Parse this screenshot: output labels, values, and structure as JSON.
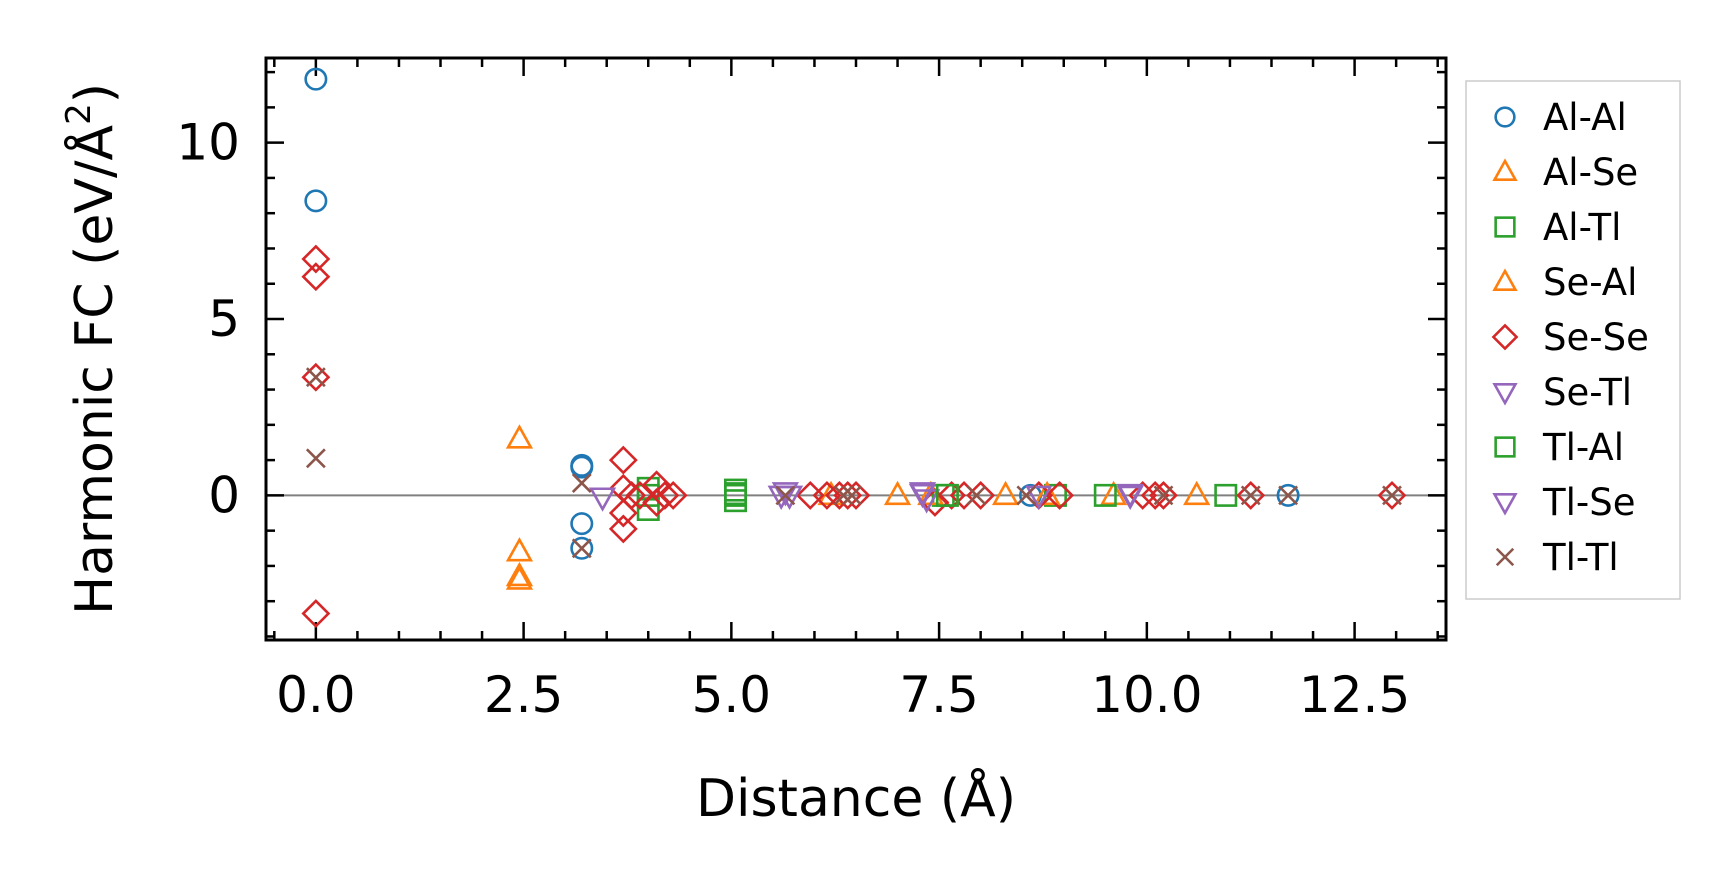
{
  "chart_data": {
    "type": "scatter",
    "title": "",
    "xlabel": "Distance (Å)",
    "ylabel_main": "Harmonic FC (eV/Å",
    "ylabel_sup": "2",
    "ylabel_close": ")",
    "xlim": [
      -0.6,
      13.6
    ],
    "ylim": [
      -4.1,
      12.4
    ],
    "xticks": [
      0.0,
      2.5,
      5.0,
      7.5,
      10.0,
      12.5
    ],
    "xtick_labels": [
      "0.0",
      "2.5",
      "5.0",
      "7.5",
      "10.0",
      "12.5"
    ],
    "yticks": [
      0,
      5,
      10
    ],
    "ytick_labels": [
      "0",
      "5",
      "10"
    ],
    "x_minor_step": 0.5,
    "y_minor_step": 1,
    "zero_line": true,
    "legend_position": "outside-right",
    "series": [
      {
        "name": "Al-Al",
        "marker": "circle",
        "color": "#1f77b4",
        "points": [
          [
            0,
            11.8
          ],
          [
            0,
            8.35
          ],
          [
            3.2,
            0.85
          ],
          [
            3.2,
            0.8
          ],
          [
            3.2,
            -0.8
          ],
          [
            3.2,
            -1.5
          ],
          [
            8.6,
            0
          ],
          [
            11.7,
            0
          ]
        ]
      },
      {
        "name": "Al-Se",
        "marker": "triangle-up",
        "color": "#ff7f0e",
        "points": [
          [
            2.45,
            1.6
          ],
          [
            2.45,
            -1.6
          ],
          [
            2.45,
            -2.3
          ],
          [
            2.45,
            -2.4
          ],
          [
            7.0,
            0
          ],
          [
            8.3,
            0
          ],
          [
            9.6,
            0
          ],
          [
            10.6,
            0
          ]
        ]
      },
      {
        "name": "Al-Tl",
        "marker": "square",
        "color": "#2ca02c",
        "points": [
          [
            4.0,
            0.2
          ],
          [
            4.0,
            0
          ],
          [
            4.0,
            -0.4
          ],
          [
            5.05,
            0.15
          ],
          [
            5.05,
            0
          ],
          [
            5.05,
            -0.15
          ],
          [
            7.55,
            0
          ],
          [
            8.9,
            0
          ],
          [
            9.5,
            0
          ],
          [
            10.95,
            0
          ]
        ]
      },
      {
        "name": "Se-Al",
        "marker": "triangle-up",
        "color": "#ff7f0e",
        "points": [
          [
            6.2,
            0
          ],
          [
            7.4,
            0
          ],
          [
            8.8,
            0
          ]
        ]
      },
      {
        "name": "Se-Se",
        "marker": "diamond",
        "color": "#d62728",
        "points": [
          [
            0,
            6.7
          ],
          [
            0,
            6.2
          ],
          [
            0,
            3.35
          ],
          [
            0,
            -3.35
          ],
          [
            3.7,
            1.0
          ],
          [
            3.7,
            0.2
          ],
          [
            3.7,
            -0.5
          ],
          [
            3.7,
            -0.95
          ],
          [
            3.8,
            0
          ],
          [
            3.9,
            0
          ],
          [
            4.1,
            0.3
          ],
          [
            4.1,
            -0.2
          ],
          [
            4.2,
            0
          ],
          [
            4.3,
            0
          ],
          [
            5.95,
            0
          ],
          [
            6.15,
            0
          ],
          [
            6.3,
            0
          ],
          [
            6.4,
            0
          ],
          [
            6.5,
            0
          ],
          [
            7.45,
            -0.2
          ],
          [
            7.65,
            0
          ],
          [
            7.8,
            0
          ],
          [
            8.0,
            0
          ],
          [
            8.7,
            0
          ],
          [
            8.95,
            0
          ],
          [
            9.95,
            0
          ],
          [
            10.1,
            0
          ],
          [
            10.2,
            0
          ],
          [
            11.25,
            0
          ],
          [
            12.95,
            0
          ]
        ]
      },
      {
        "name": "Se-Tl",
        "marker": "triangle-down",
        "color": "#9467bd",
        "points": [
          [
            3.45,
            -0.05
          ],
          [
            5.65,
            0.1
          ],
          [
            5.7,
            0
          ],
          [
            7.3,
            0.05
          ],
          [
            7.35,
            -0.1
          ],
          [
            9.8,
            0.05
          ]
        ]
      },
      {
        "name": "Tl-Al",
        "marker": "square",
        "color": "#2ca02c",
        "points": [
          [
            5.05,
            0.05
          ],
          [
            7.6,
            0
          ]
        ]
      },
      {
        "name": "Tl-Se",
        "marker": "triangle-down",
        "color": "#9467bd",
        "points": [
          [
            5.6,
            0
          ],
          [
            7.3,
            0.1
          ],
          [
            8.7,
            0
          ],
          [
            9.8,
            0
          ]
        ]
      },
      {
        "name": "Tl-Tl",
        "marker": "x",
        "color": "#8c564b",
        "points": [
          [
            0,
            3.35
          ],
          [
            0,
            1.05
          ],
          [
            3.2,
            0.35
          ],
          [
            3.2,
            -1.5
          ],
          [
            5.65,
            0
          ],
          [
            6.35,
            0
          ],
          [
            6.45,
            0
          ],
          [
            7.95,
            0
          ],
          [
            8.55,
            0
          ],
          [
            10.2,
            0
          ],
          [
            11.25,
            0
          ],
          [
            11.7,
            0
          ],
          [
            12.95,
            0
          ]
        ]
      }
    ]
  }
}
